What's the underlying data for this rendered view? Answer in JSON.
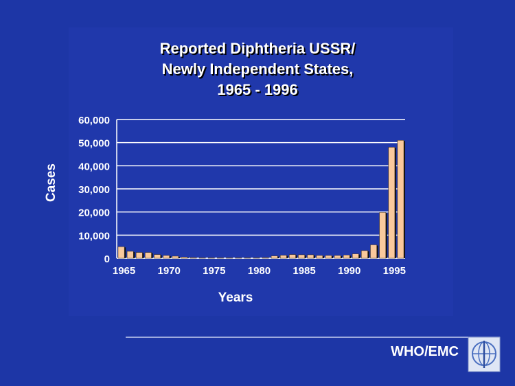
{
  "chart_data": {
    "type": "bar",
    "title": [
      "Reported Diphtheria USSR/",
      "Newly Independent States,",
      "1965 - 1996"
    ],
    "x_label": "Years",
    "y_label": "Cases",
    "footer": "WHO/EMC",
    "categories": [
      "1965",
      null,
      null,
      null,
      null,
      "1970",
      null,
      null,
      null,
      null,
      "1975",
      null,
      null,
      null,
      null,
      "1980",
      null,
      null,
      null,
      null,
      "1985",
      null,
      null,
      null,
      null,
      "1990",
      null,
      null,
      null,
      null,
      "1995",
      null
    ],
    "values": [
      5000,
      3000,
      2500,
      2500,
      1600,
      1200,
      900,
      500,
      300,
      200,
      200,
      200,
      200,
      200,
      200,
      200,
      300,
      1000,
      1300,
      1600,
      1500,
      1500,
      1200,
      1200,
      1200,
      1400,
      1900,
      3300,
      5800,
      19800,
      48000,
      51000
    ],
    "color": "#f9c99c",
    "ylim": [
      0,
      60000
    ],
    "yticks": [
      0,
      {
        "value": 10000,
        "label": "10,000"
      },
      {
        "value": 20000,
        "label": "20,000"
      },
      {
        "value": 30000,
        "label": "30,000"
      },
      {
        "value": 40000,
        "label": "40,000"
      },
      {
        "value": 50000,
        "label": "50,000"
      },
      {
        "value": 60000,
        "label": "60,000"
      }
    ],
    "grid": true
  }
}
